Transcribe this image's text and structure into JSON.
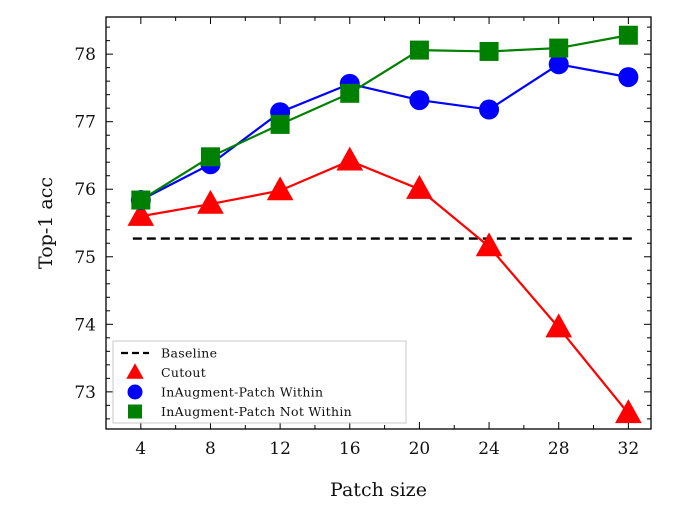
{
  "chart_data": {
    "type": "line",
    "xlabel": "Patch size",
    "ylabel": "Top-1 acc",
    "x": [
      4,
      8,
      12,
      16,
      20,
      24,
      28,
      32
    ],
    "xlim": [
      2,
      33.3
    ],
    "ylim": [
      72.45,
      78.55
    ],
    "xticks": [
      4,
      8,
      12,
      16,
      20,
      24,
      28,
      32
    ],
    "yticks": [
      73,
      74,
      75,
      76,
      77,
      78
    ],
    "grid": false,
    "legend_position": "lower-left",
    "series": [
      {
        "name": "Baseline",
        "marker": "none",
        "style": "dashed",
        "color": "#000000",
        "values": [
          75.27,
          75.27,
          75.27,
          75.27,
          75.27,
          75.27,
          75.27,
          75.27
        ]
      },
      {
        "name": "Cutout",
        "marker": "triangle",
        "style": "solid",
        "color": "#ff0000",
        "values": [
          75.6,
          75.78,
          75.98,
          76.42,
          76.0,
          75.15,
          73.95,
          72.68
        ]
      },
      {
        "name": "InAugment-Patch Within",
        "marker": "circle",
        "style": "solid",
        "color": "#0000ff",
        "values": [
          75.84,
          76.37,
          77.14,
          77.56,
          77.32,
          77.18,
          77.85,
          77.66
        ]
      },
      {
        "name": "InAugment-Patch Not Within",
        "marker": "square",
        "style": "solid",
        "color": "#008000",
        "values": [
          75.84,
          76.48,
          76.96,
          77.42,
          78.06,
          78.04,
          78.09,
          78.28
        ]
      }
    ]
  }
}
